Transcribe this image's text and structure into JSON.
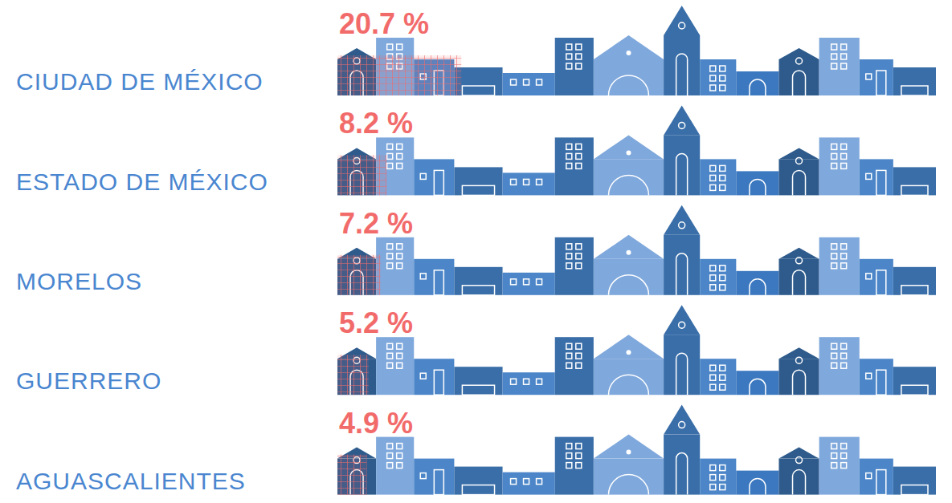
{
  "chart_data": {
    "type": "bar",
    "orientation": "horizontal",
    "categories": [
      "CIUDAD DE MÉXICO",
      "ESTADO DE MÉXICO",
      "MORELOS",
      "GUERRERO",
      "AGUASCALIENTES"
    ],
    "values": [
      20.7,
      8.2,
      7.2,
      5.2,
      4.9
    ],
    "value_labels": [
      "20.7 %",
      "8.2 %",
      "7.2 %",
      "5.2 %",
      "4.9 %"
    ],
    "xlim": [
      0,
      100
    ],
    "color": "#f26b6b",
    "data_labels": true,
    "tick_labels": "y",
    "grid": false
  }
}
